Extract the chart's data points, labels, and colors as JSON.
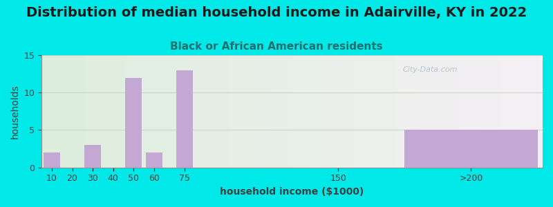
{
  "title": "Distribution of median household income in Adairville, KY in 2022",
  "subtitle": "Black or African American residents",
  "xlabel": "household income ($1000)",
  "ylabel": "households",
  "categories": [
    "10",
    "20",
    "30",
    "40",
    "50",
    "60",
    "75",
    "150",
    ">200"
  ],
  "values": [
    2,
    0,
    3,
    0,
    12,
    2,
    13,
    0,
    5
  ],
  "bar_color": "#c4a8d4",
  "ylim": [
    0,
    15
  ],
  "yticks": [
    0,
    5,
    10,
    15
  ],
  "outer_bg": "#00e8e8",
  "title_fontsize": 14,
  "subtitle_fontsize": 11,
  "subtitle_color": "#207070",
  "axis_label_fontsize": 10,
  "tick_fontsize": 9,
  "grid_color": "#c8d8c0",
  "watermark": "City-Data.com"
}
